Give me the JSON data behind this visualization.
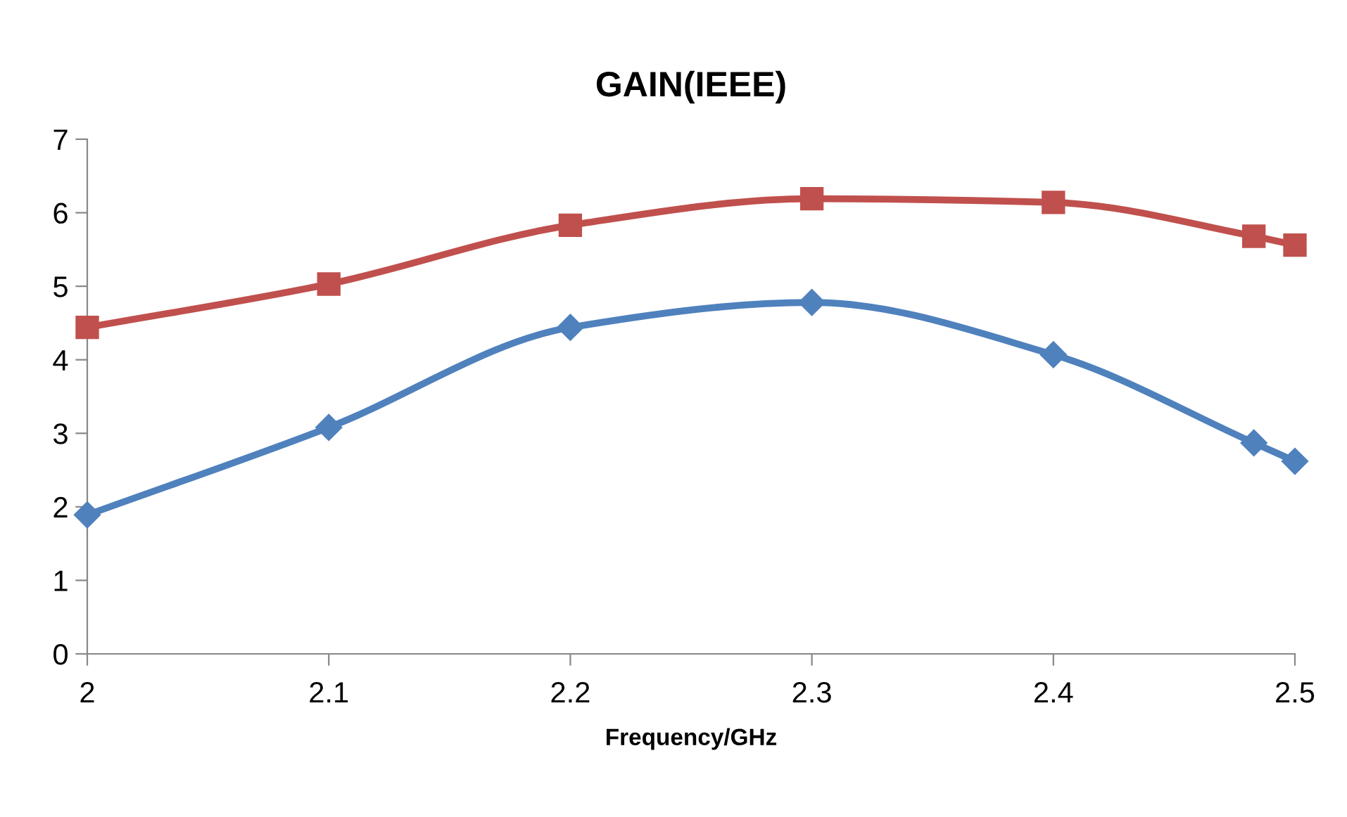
{
  "chart_data": {
    "type": "line",
    "title": "GAIN(IEEE)",
    "xlabel": "Frequency/GHz",
    "x": [
      2,
      2.1,
      2.2,
      2.3,
      2.4,
      2.483,
      2.5
    ],
    "xlim": [
      2,
      2.5
    ],
    "xticks": [
      2,
      2.1,
      2.2,
      2.3,
      2.4,
      2.5
    ],
    "ylim": [
      0,
      7
    ],
    "yticks": [
      0,
      1,
      2,
      3,
      4,
      5,
      6,
      7
    ],
    "grid": false,
    "legend": false,
    "series": [
      {
        "color": "#4f81bd",
        "marker": "diamond",
        "values": [
          1.89,
          3.08,
          4.44,
          4.78,
          4.07,
          2.87,
          2.62
        ]
      },
      {
        "color": "#c0504d",
        "marker": "square",
        "values": [
          4.44,
          5.03,
          5.83,
          6.19,
          6.14,
          5.68,
          5.56
        ]
      }
    ]
  }
}
